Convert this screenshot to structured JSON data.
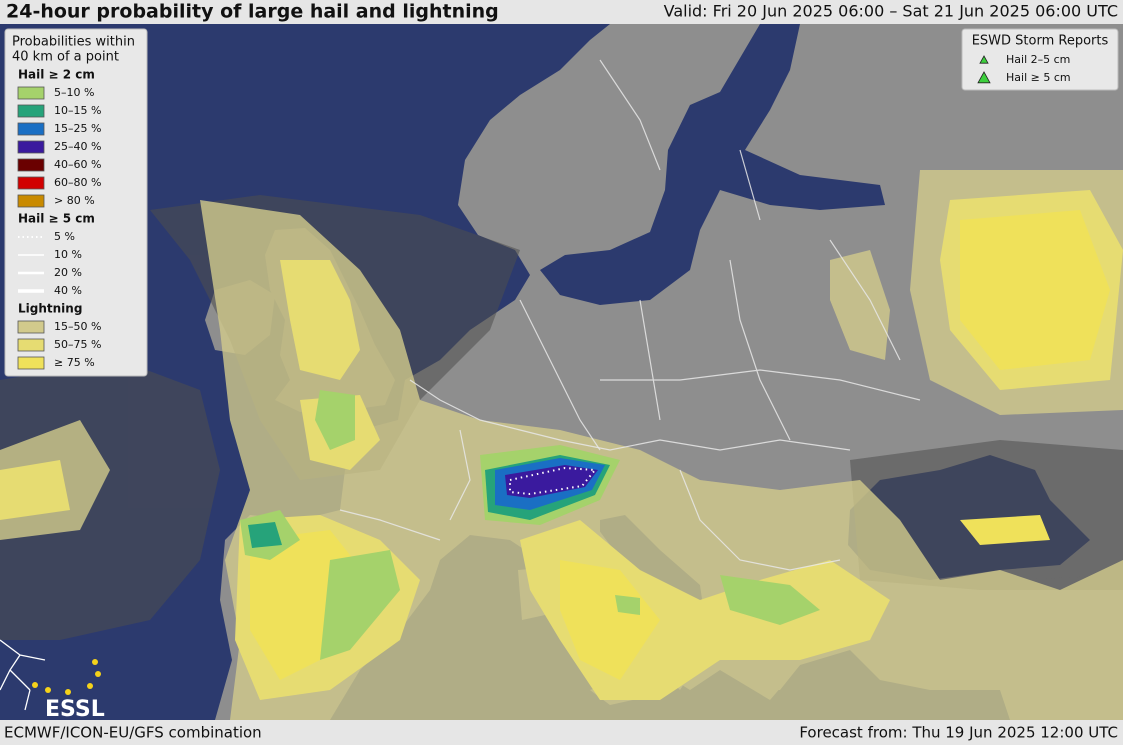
{
  "header": {
    "title": "24-hour probability of large hail and lightning",
    "valid": "Valid: Fri 20 Jun 2025 06:00 – Sat 21 Jun 2025 06:00 UTC"
  },
  "legend": {
    "title_lines": [
      "Probabilities within",
      "40 km of a point"
    ],
    "sections": [
      {
        "heading": "Hail ≥ 2 cm",
        "items": [
          {
            "label": "5–10 %",
            "color": "#a5d26b"
          },
          {
            "label": "10–15 %",
            "color": "#26a37a"
          },
          {
            "label": "15–25 %",
            "color": "#1a6fc4"
          },
          {
            "label": "25–40 %",
            "color": "#3a1a9e"
          },
          {
            "label": "40–60 %",
            "color": "#6a0000"
          },
          {
            "label": "60–80 %",
            "color": "#d10000"
          },
          {
            "label": "> 80 %",
            "color": "#c98a00"
          }
        ]
      },
      {
        "heading": "Hail ≥ 5 cm",
        "items": [
          {
            "label": "5 %",
            "color": "#ffffff"
          },
          {
            "label": "10 %",
            "color": "#ffffff"
          },
          {
            "label": "20 %",
            "color": "#ffffff"
          },
          {
            "label": "40 %",
            "color": "#ffffff"
          }
        ]
      },
      {
        "heading": "Lightning",
        "items": [
          {
            "label": "15–50 %",
            "color": "#d2ca8c"
          },
          {
            "label": "50–75 %",
            "color": "#e6dc72"
          },
          {
            "label": "≥ 75 %",
            "color": "#efe15a"
          }
        ]
      }
    ]
  },
  "reports": {
    "title": "ESWD Storm Reports",
    "items": [
      {
        "label": "Hail 2–5 cm",
        "color": "#3ccf3c"
      },
      {
        "label": "Hail ≥ 5 cm",
        "color": "#3ccf3c"
      }
    ]
  },
  "logo": "ESSL",
  "footer": {
    "left": "ECMWF/ICON-EU/GFS combination",
    "right": "Forecast from: Thu 19 Jun 2025 12:00 UTC"
  }
}
